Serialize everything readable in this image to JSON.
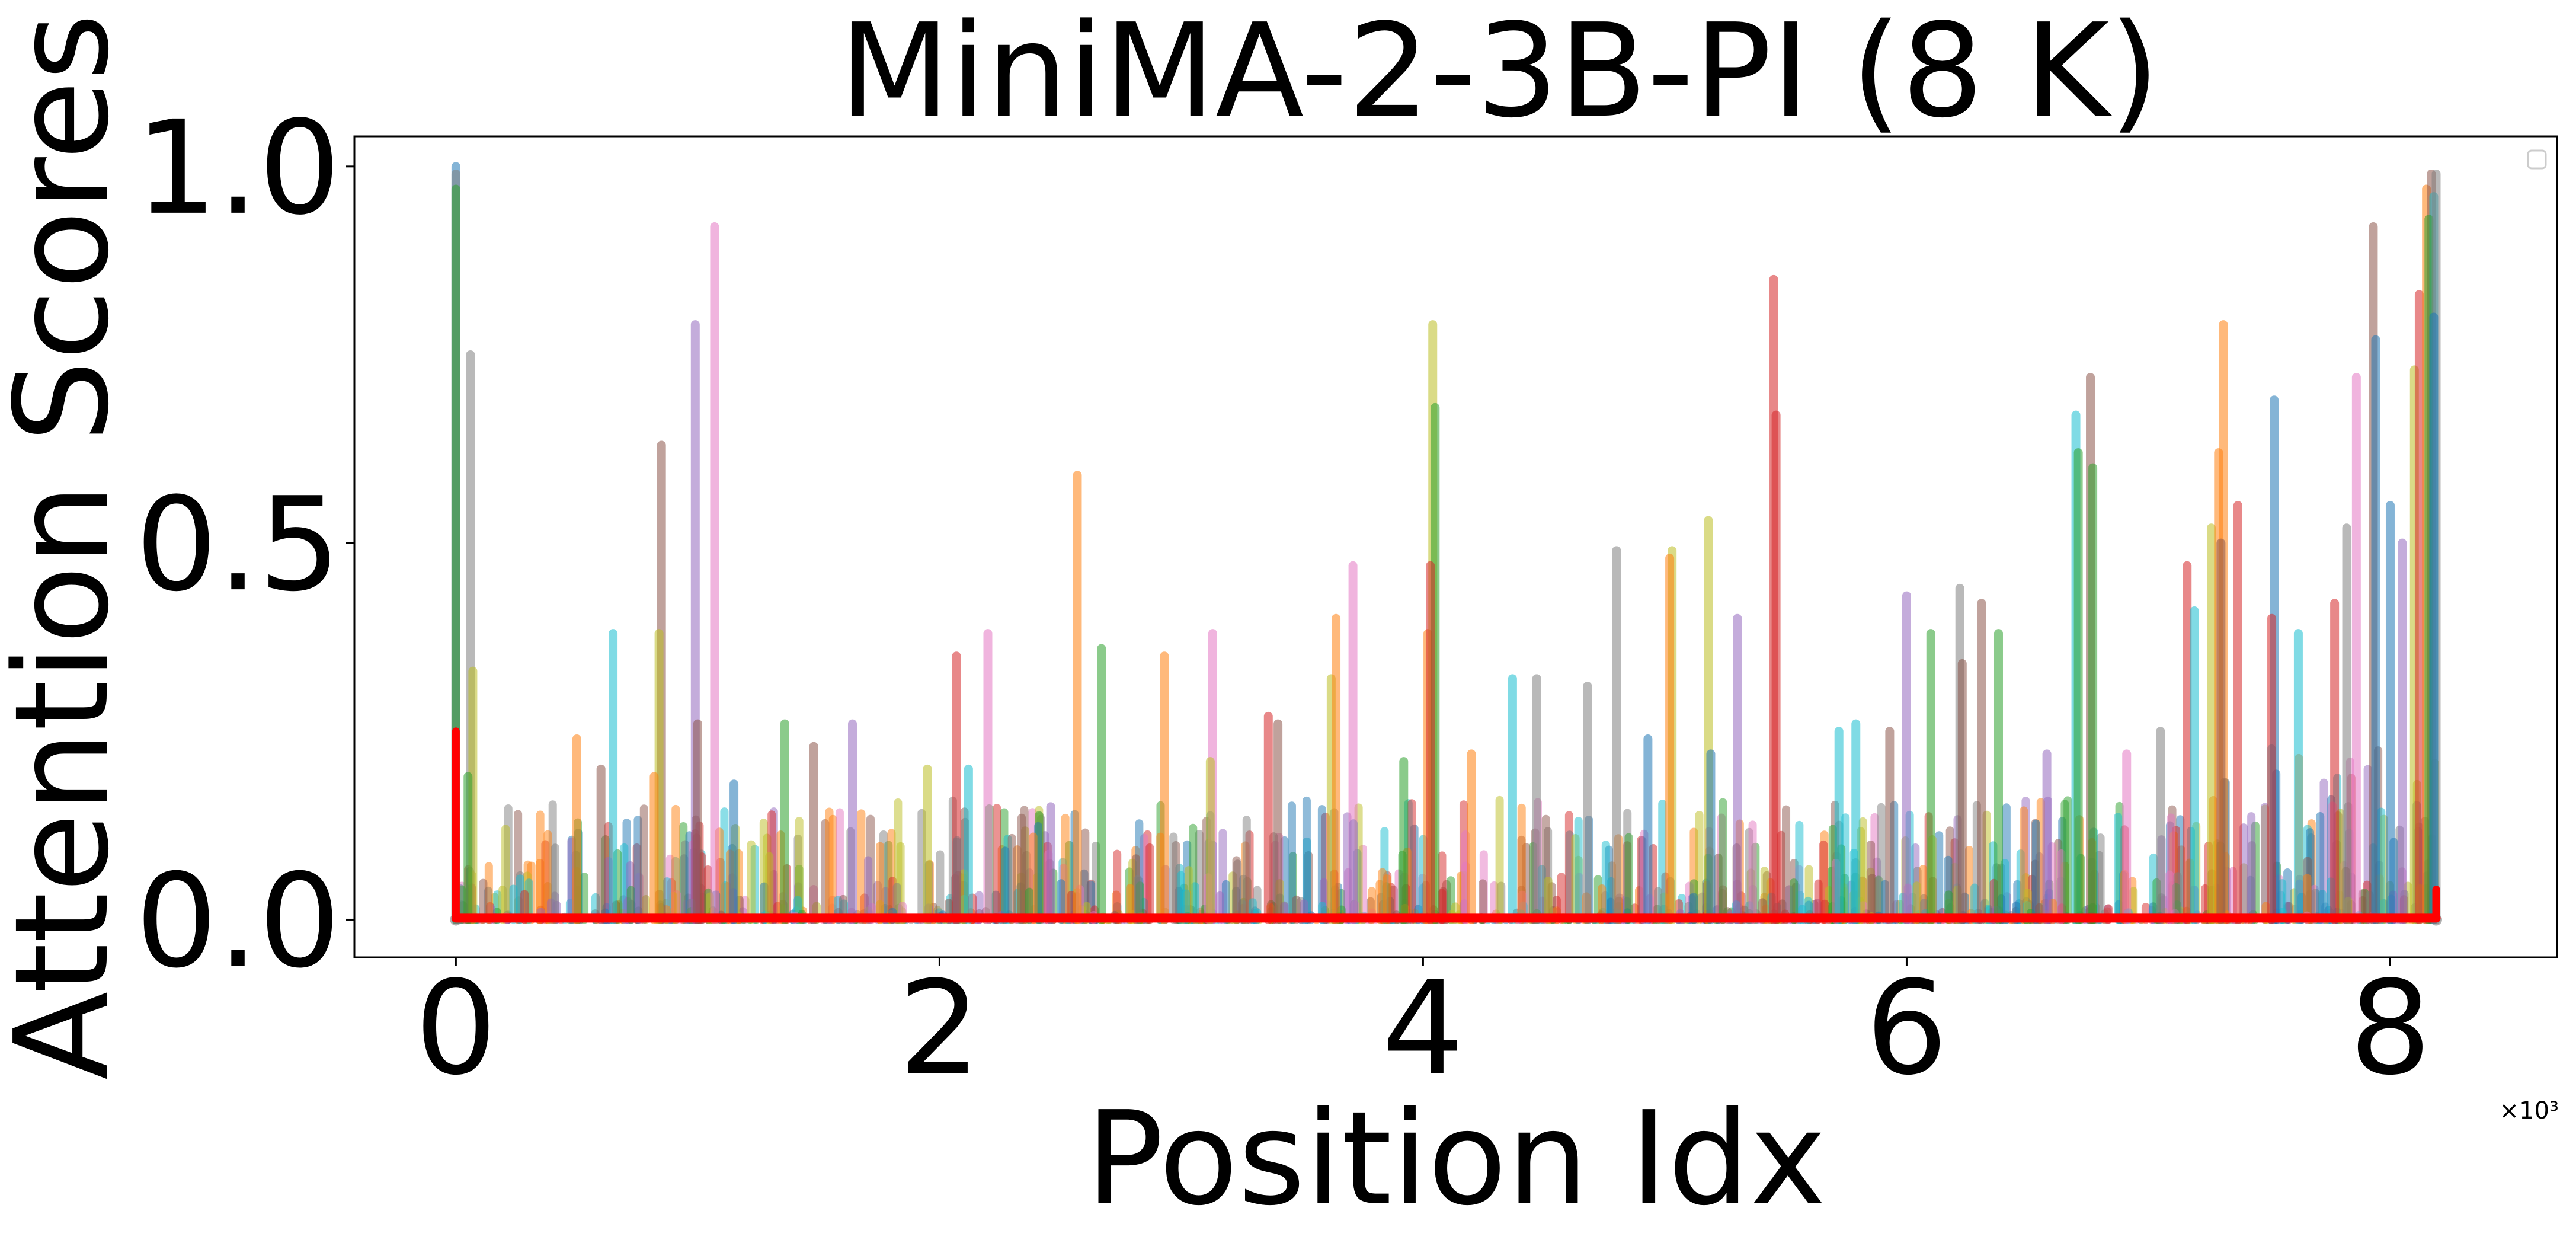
{
  "chart_data": {
    "type": "line",
    "title": "MiniMA-2-3B-PI (8 K)",
    "xlabel": "Position Idx",
    "ylabel": "Attention Scores",
    "x_multiplier_label": "×10³",
    "xlim": [
      -0.42,
      8.69
    ],
    "ylim": [
      -0.05,
      1.04
    ],
    "xticks": [
      0,
      2,
      4,
      6,
      8
    ],
    "xtick_labels": [
      "0",
      "2",
      "4",
      "6",
      "8"
    ],
    "yticks": [
      0.0,
      0.5,
      1.0
    ],
    "ytick_labels": [
      "0.0",
      "0.5",
      "1.0"
    ],
    "grid": false,
    "legend": "top-right (empty)",
    "x_range": [
      0,
      8.19
    ],
    "palette": [
      "#1f77b4",
      "#ff7f0e",
      "#2ca02c",
      "#d62728",
      "#9467bd",
      "#8c564b",
      "#e377c2",
      "#7f7f7f",
      "#bcbd22",
      "#17becf"
    ],
    "highlight_series": {
      "color": "#ff0000",
      "baseline": 0.002,
      "spikes": [
        {
          "x": 0.0,
          "y": 0.25
        },
        {
          "x": 8.19,
          "y": 0.04
        }
      ]
    },
    "spikes": [
      {
        "x": 0.0,
        "y": 1.0,
        "c": 0
      },
      {
        "x": 0.0,
        "y": 0.99,
        "c": 7
      },
      {
        "x": 0.0,
        "y": 0.97,
        "c": 2
      },
      {
        "x": 0.06,
        "y": 0.75,
        "c": 7
      },
      {
        "x": 0.07,
        "y": 0.33,
        "c": 8
      },
      {
        "x": 0.05,
        "y": 0.19,
        "c": 2
      },
      {
        "x": 0.5,
        "y": 0.24,
        "c": 1
      },
      {
        "x": 0.65,
        "y": 0.38,
        "c": 9
      },
      {
        "x": 0.6,
        "y": 0.2,
        "c": 5
      },
      {
        "x": 0.85,
        "y": 0.63,
        "c": 5
      },
      {
        "x": 0.84,
        "y": 0.38,
        "c": 8
      },
      {
        "x": 0.82,
        "y": 0.19,
        "c": 1
      },
      {
        "x": 0.99,
        "y": 0.79,
        "c": 4
      },
      {
        "x": 1.0,
        "y": 0.26,
        "c": 5
      },
      {
        "x": 1.07,
        "y": 0.92,
        "c": 6
      },
      {
        "x": 1.15,
        "y": 0.18,
        "c": 0
      },
      {
        "x": 1.36,
        "y": 0.26,
        "c": 2
      },
      {
        "x": 1.48,
        "y": 0.23,
        "c": 5
      },
      {
        "x": 1.64,
        "y": 0.26,
        "c": 4
      },
      {
        "x": 1.95,
        "y": 0.2,
        "c": 8
      },
      {
        "x": 2.07,
        "y": 0.35,
        "c": 3
      },
      {
        "x": 2.2,
        "y": 0.38,
        "c": 6
      },
      {
        "x": 2.12,
        "y": 0.2,
        "c": 9
      },
      {
        "x": 2.46,
        "y": 0.15,
        "c": 4
      },
      {
        "x": 2.57,
        "y": 0.59,
        "c": 1
      },
      {
        "x": 2.67,
        "y": 0.36,
        "c": 2
      },
      {
        "x": 2.93,
        "y": 0.35,
        "c": 1
      },
      {
        "x": 3.13,
        "y": 0.38,
        "c": 6
      },
      {
        "x": 3.12,
        "y": 0.21,
        "c": 8
      },
      {
        "x": 3.36,
        "y": 0.27,
        "c": 3
      },
      {
        "x": 3.4,
        "y": 0.26,
        "c": 5
      },
      {
        "x": 3.62,
        "y": 0.32,
        "c": 8
      },
      {
        "x": 3.64,
        "y": 0.4,
        "c": 1
      },
      {
        "x": 3.71,
        "y": 0.47,
        "c": 6
      },
      {
        "x": 3.92,
        "y": 0.21,
        "c": 2
      },
      {
        "x": 4.02,
        "y": 0.38,
        "c": 1
      },
      {
        "x": 4.04,
        "y": 0.79,
        "c": 8
      },
      {
        "x": 4.05,
        "y": 0.68,
        "c": 2
      },
      {
        "x": 4.03,
        "y": 0.47,
        "c": 3
      },
      {
        "x": 4.2,
        "y": 0.22,
        "c": 1
      },
      {
        "x": 4.37,
        "y": 0.32,
        "c": 9
      },
      {
        "x": 4.47,
        "y": 0.32,
        "c": 7
      },
      {
        "x": 4.68,
        "y": 0.31,
        "c": 7
      },
      {
        "x": 4.8,
        "y": 0.49,
        "c": 7
      },
      {
        "x": 4.93,
        "y": 0.24,
        "c": 0
      },
      {
        "x": 5.03,
        "y": 0.49,
        "c": 8
      },
      {
        "x": 5.02,
        "y": 0.48,
        "c": 1
      },
      {
        "x": 5.18,
        "y": 0.53,
        "c": 8
      },
      {
        "x": 5.19,
        "y": 0.22,
        "c": 0
      },
      {
        "x": 5.3,
        "y": 0.4,
        "c": 4
      },
      {
        "x": 5.45,
        "y": 0.85,
        "c": 3
      },
      {
        "x": 5.46,
        "y": 0.67,
        "c": 3
      },
      {
        "x": 5.72,
        "y": 0.25,
        "c": 9
      },
      {
        "x": 5.79,
        "y": 0.26,
        "c": 9
      },
      {
        "x": 5.93,
        "y": 0.25,
        "c": 5
      },
      {
        "x": 6.0,
        "y": 0.43,
        "c": 4
      },
      {
        "x": 6.1,
        "y": 0.38,
        "c": 2
      },
      {
        "x": 6.22,
        "y": 0.44,
        "c": 7
      },
      {
        "x": 6.23,
        "y": 0.34,
        "c": 5
      },
      {
        "x": 6.31,
        "y": 0.42,
        "c": 5
      },
      {
        "x": 6.38,
        "y": 0.38,
        "c": 2
      },
      {
        "x": 6.58,
        "y": 0.22,
        "c": 4
      },
      {
        "x": 6.7,
        "y": 0.67,
        "c": 9
      },
      {
        "x": 6.71,
        "y": 0.62,
        "c": 2
      },
      {
        "x": 6.76,
        "y": 0.72,
        "c": 5
      },
      {
        "x": 6.77,
        "y": 0.6,
        "c": 2
      },
      {
        "x": 6.91,
        "y": 0.22,
        "c": 6
      },
      {
        "x": 7.05,
        "y": 0.25,
        "c": 7
      },
      {
        "x": 7.16,
        "y": 0.47,
        "c": 3
      },
      {
        "x": 7.19,
        "y": 0.41,
        "c": 9
      },
      {
        "x": 7.26,
        "y": 0.52,
        "c": 8
      },
      {
        "x": 7.29,
        "y": 0.62,
        "c": 1
      },
      {
        "x": 7.31,
        "y": 0.79,
        "c": 1
      },
      {
        "x": 7.3,
        "y": 0.5,
        "c": 5
      },
      {
        "x": 7.37,
        "y": 0.55,
        "c": 3
      },
      {
        "x": 7.52,
        "y": 0.69,
        "c": 0
      },
      {
        "x": 7.51,
        "y": 0.4,
        "c": 3
      },
      {
        "x": 7.62,
        "y": 0.38,
        "c": 9
      },
      {
        "x": 7.77,
        "y": 0.42,
        "c": 3
      },
      {
        "x": 7.82,
        "y": 0.52,
        "c": 7
      },
      {
        "x": 7.86,
        "y": 0.72,
        "c": 6
      },
      {
        "x": 7.93,
        "y": 0.92,
        "c": 5
      },
      {
        "x": 7.94,
        "y": 0.77,
        "c": 0
      },
      {
        "x": 8.0,
        "y": 0.55,
        "c": 0
      },
      {
        "x": 8.05,
        "y": 0.5,
        "c": 4
      },
      {
        "x": 8.1,
        "y": 0.73,
        "c": 8
      },
      {
        "x": 8.12,
        "y": 0.83,
        "c": 3
      },
      {
        "x": 8.15,
        "y": 0.97,
        "c": 1
      },
      {
        "x": 8.17,
        "y": 0.99,
        "c": 5
      },
      {
        "x": 8.18,
        "y": 0.96,
        "c": 9
      },
      {
        "x": 8.16,
        "y": 0.93,
        "c": 2
      },
      {
        "x": 8.19,
        "y": 0.99,
        "c": 7
      },
      {
        "x": 8.18,
        "y": 0.8,
        "c": 0
      }
    ]
  }
}
